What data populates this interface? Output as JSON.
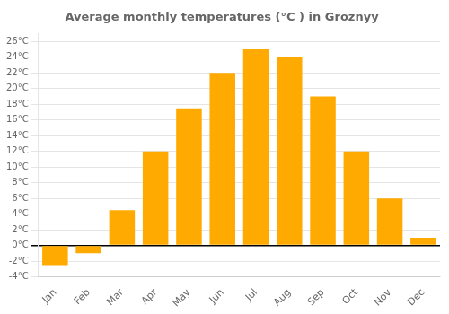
{
  "chart_data": {
    "type": "bar",
    "title": "Average monthly temperatures (°C ) in Groznyy",
    "categories": [
      "Jan",
      "Feb",
      "Mar",
      "Apr",
      "May",
      "Jun",
      "Jul",
      "Aug",
      "Sep",
      "Oct",
      "Nov",
      "Dec"
    ],
    "values": [
      -2.5,
      -1.0,
      4.5,
      12.0,
      17.5,
      22.0,
      25.0,
      24.0,
      19.0,
      12.0,
      6.0,
      1.0
    ],
    "color": "#FFAA00",
    "ylim": [
      -4,
      27
    ],
    "yticks": [
      {
        "value": -4,
        "label": "-4°C"
      },
      {
        "value": -2,
        "label": "-2°C"
      },
      {
        "value": 0,
        "label": "0°C"
      },
      {
        "value": 2,
        "label": "2°C"
      },
      {
        "value": 4,
        "label": "4°C"
      },
      {
        "value": 6,
        "label": "6°C"
      },
      {
        "value": 8,
        "label": "8°C"
      },
      {
        "value": 10,
        "label": "10°C"
      },
      {
        "value": 12,
        "label": "12°C"
      },
      {
        "value": 14,
        "label": "14°C"
      },
      {
        "value": 16,
        "label": "16°C"
      },
      {
        "value": 18,
        "label": "18°C"
      },
      {
        "value": 20,
        "label": "20°C"
      },
      {
        "value": 22,
        "label": "22°C"
      },
      {
        "value": 24,
        "label": "24°C"
      },
      {
        "value": 26,
        "label": "26°C"
      }
    ],
    "grid": true
  }
}
